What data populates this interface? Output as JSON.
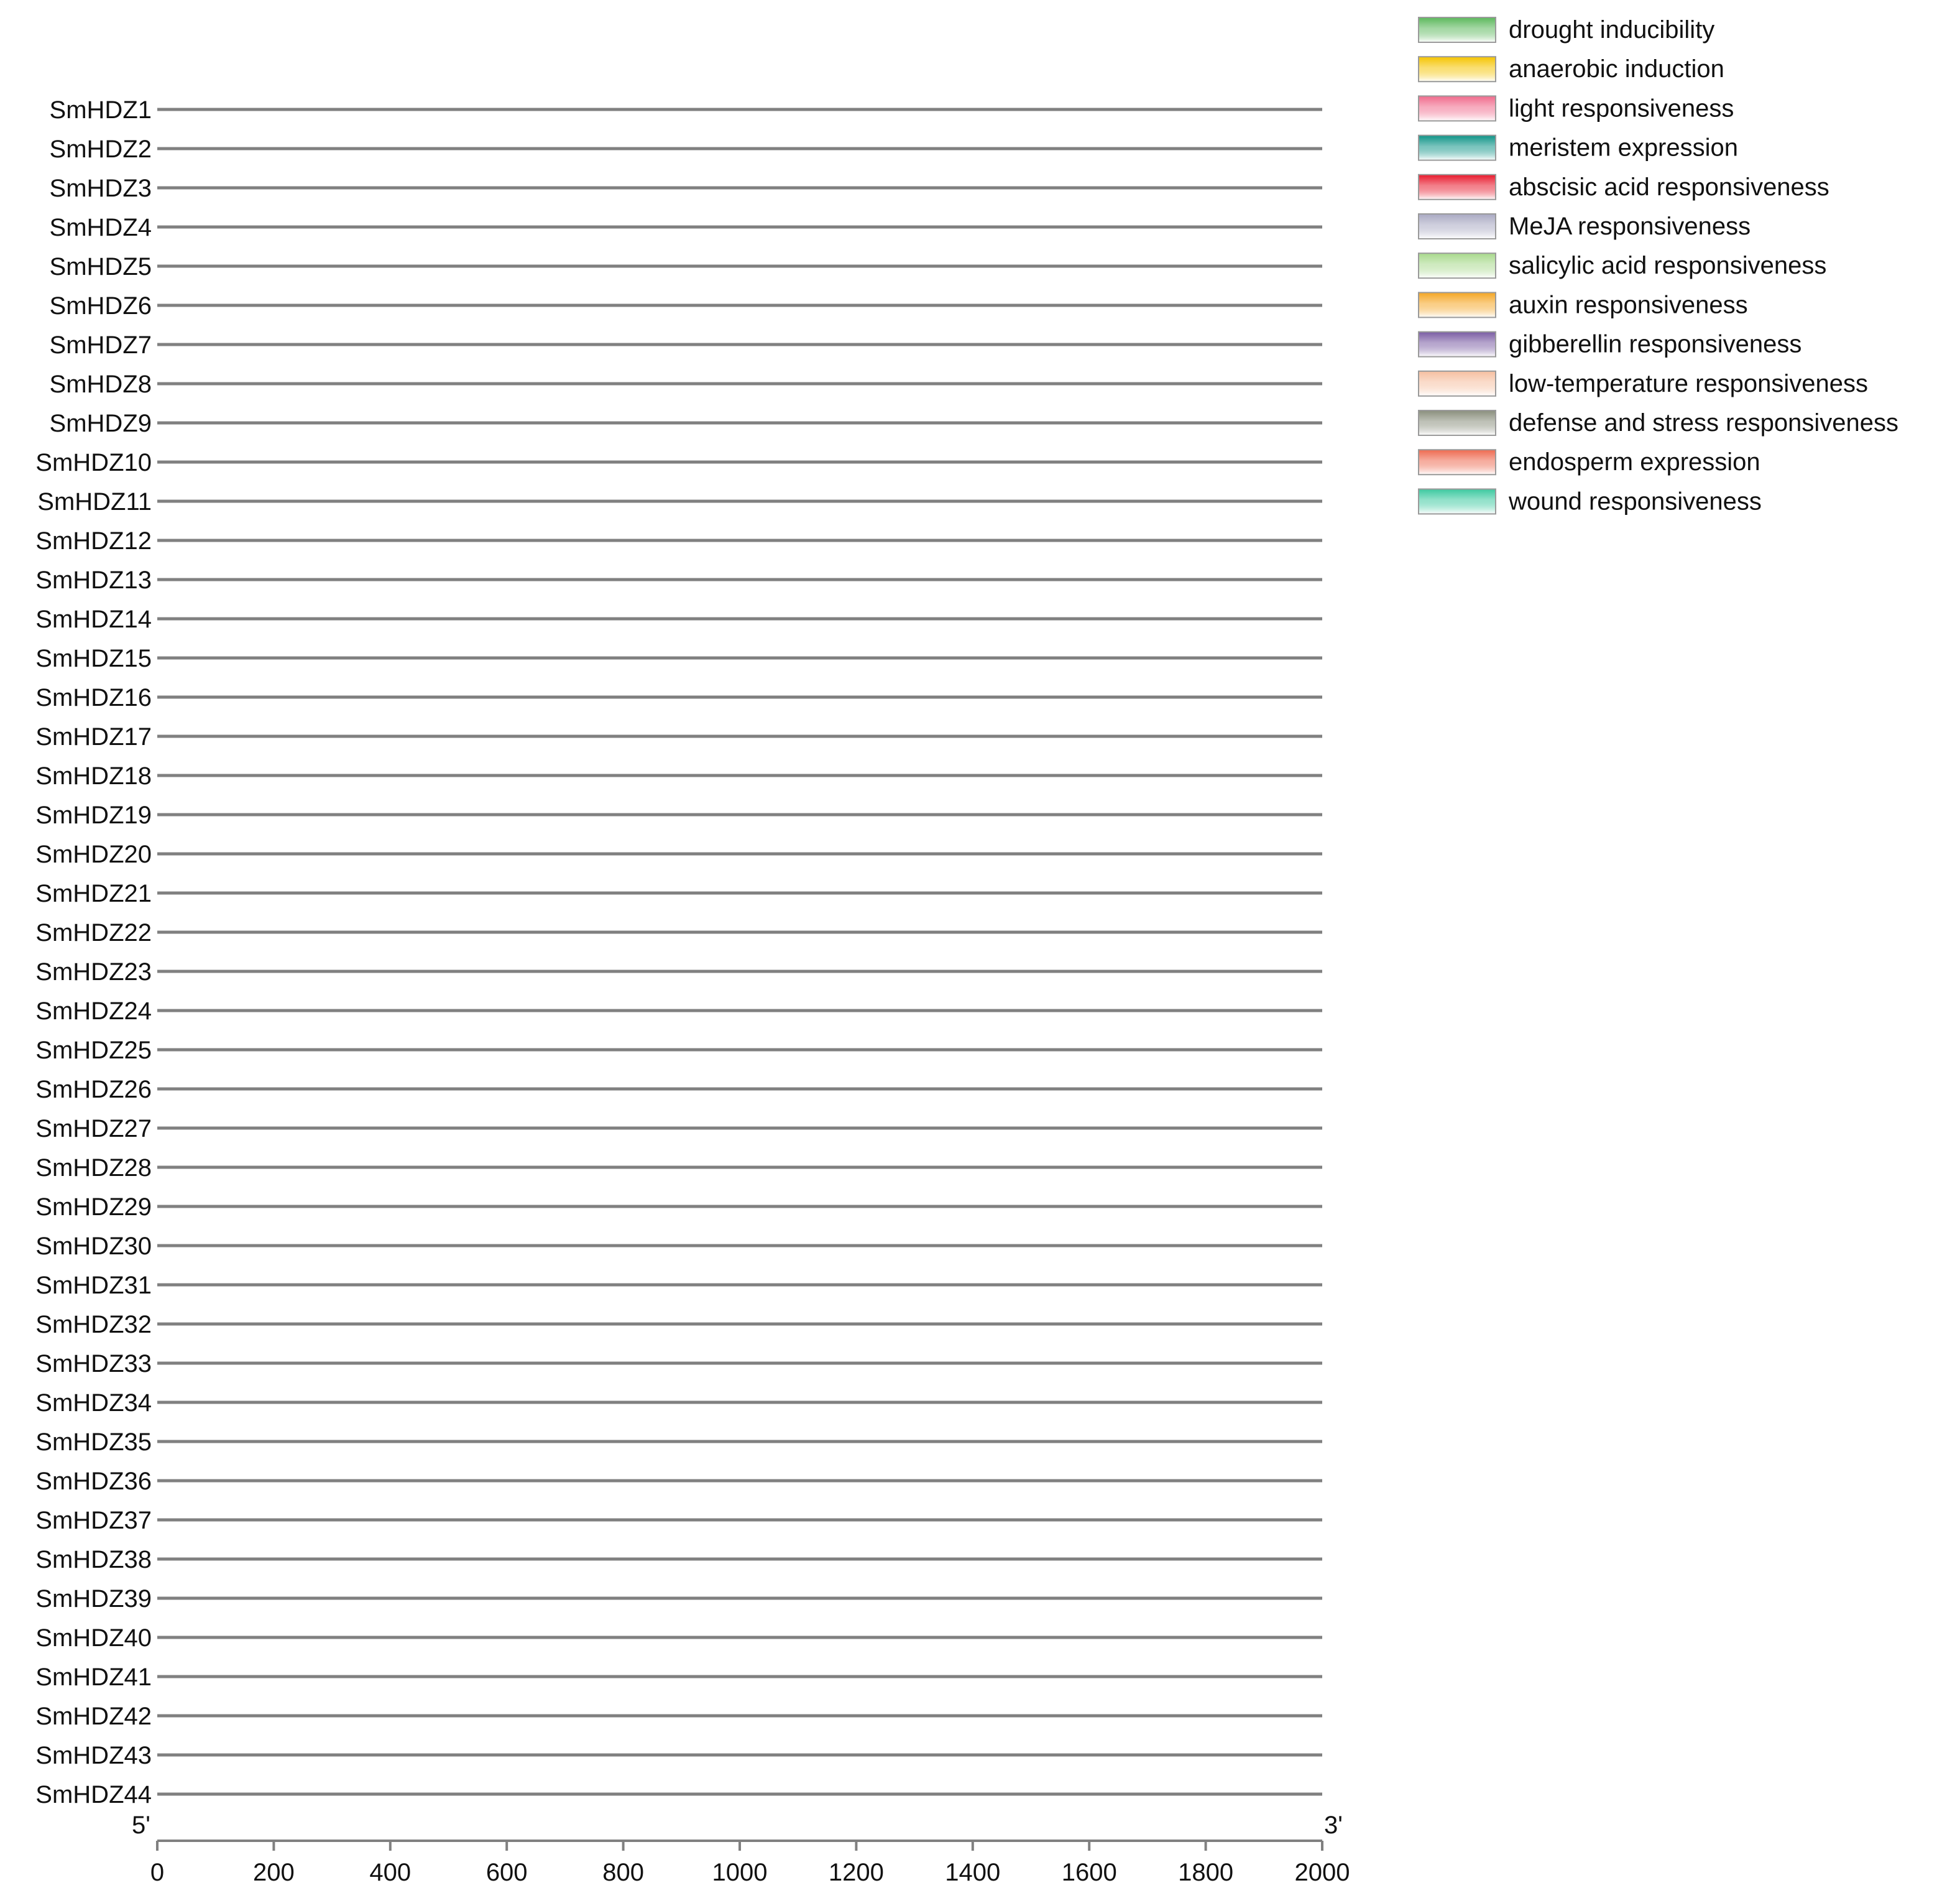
{
  "chart_data": {
    "type": "promoter-element-map",
    "title": "",
    "x_axis": {
      "min": 0,
      "max": 2000,
      "ticks": [
        0,
        200,
        400,
        600,
        800,
        1000,
        1200,
        1400,
        1600,
        1800,
        2000
      ],
      "start_label": "5'",
      "end_label": "3'"
    },
    "genes": [
      "SmHDZ1",
      "SmHDZ2",
      "SmHDZ3",
      "SmHDZ4",
      "SmHDZ5",
      "SmHDZ6",
      "SmHDZ7",
      "SmHDZ8",
      "SmHDZ9",
      "SmHDZ10",
      "SmHDZ11",
      "SmHDZ12",
      "SmHDZ13",
      "SmHDZ14",
      "SmHDZ15",
      "SmHDZ16",
      "SmHDZ17",
      "SmHDZ18",
      "SmHDZ19",
      "SmHDZ20",
      "SmHDZ21",
      "SmHDZ22",
      "SmHDZ23",
      "SmHDZ24",
      "SmHDZ25",
      "SmHDZ26",
      "SmHDZ27",
      "SmHDZ28",
      "SmHDZ29",
      "SmHDZ30",
      "SmHDZ31",
      "SmHDZ32",
      "SmHDZ33",
      "SmHDZ34",
      "SmHDZ35",
      "SmHDZ36",
      "SmHDZ37",
      "SmHDZ38",
      "SmHDZ39",
      "SmHDZ40",
      "SmHDZ41",
      "SmHDZ42",
      "SmHDZ43",
      "SmHDZ44"
    ],
    "legend": [
      {
        "key": "drought",
        "label": "drought inducibility",
        "color": "#5cb85c"
      },
      {
        "key": "anaerobic",
        "label": "anaerobic induction",
        "color": "#f5c400"
      },
      {
        "key": "light",
        "label": "light responsiveness",
        "color": "#f06a8c"
      },
      {
        "key": "meristem",
        "label": "meristem expression",
        "color": "#0e9488"
      },
      {
        "key": "aba",
        "label": "abscisic acid responsiveness",
        "color": "#e8192c"
      },
      {
        "key": "meja",
        "label": "MeJA responsiveness",
        "color": "#a9a9c2"
      },
      {
        "key": "sa",
        "label": "salicylic acid responsiveness",
        "color": "#a8d98c"
      },
      {
        "key": "auxin",
        "label": "auxin responsiveness",
        "color": "#f5a623"
      },
      {
        "key": "ga",
        "label": "gibberellin responsiveness",
        "color": "#7a5ca3"
      },
      {
        "key": "lowtemp",
        "label": "low-temperature responsiveness",
        "color": "#f6bfa0"
      },
      {
        "key": "defense",
        "label": "defense and stress responsiveness",
        "color": "#8a8f7d"
      },
      {
        "key": "endosperm",
        "label": "endosperm expression",
        "color": "#ee6a50"
      },
      {
        "key": "wound",
        "label": "wound responsiveness",
        "color": "#3cc9a0"
      }
    ],
    "line_color": "#808080"
  }
}
